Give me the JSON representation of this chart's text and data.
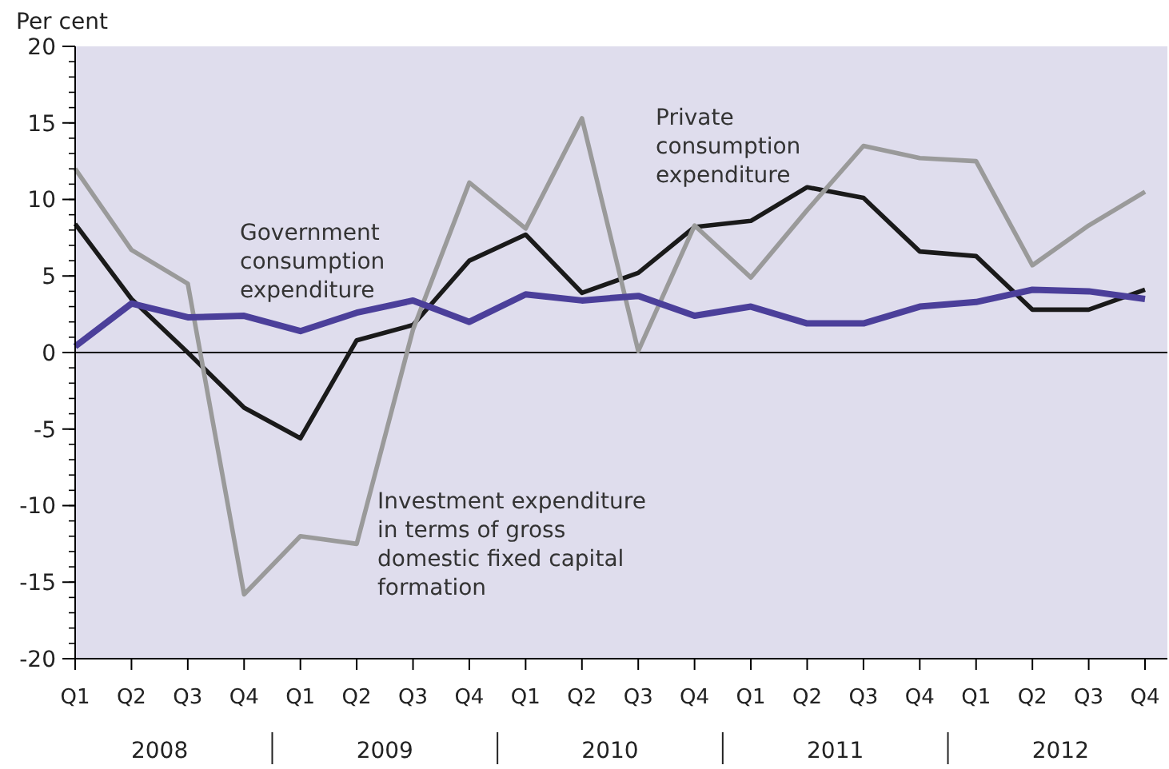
{
  "chart_data": {
    "type": "line",
    "ylabel": "Per cent",
    "categories": [
      "Q1",
      "Q2",
      "Q3",
      "Q4",
      "Q1",
      "Q2",
      "Q3",
      "Q4",
      "Q1",
      "Q2",
      "Q3",
      "Q4",
      "Q1",
      "Q2",
      "Q3",
      "Q4",
      "Q1",
      "Q2",
      "Q3",
      "Q4"
    ],
    "annotations": [
      "2008",
      "2009",
      "2010",
      "2011",
      "2012"
    ],
    "series": [
      {
        "name": "Private consumption expenditure",
        "color": "#1a1a1a",
        "values": [
          8.4,
          3.5,
          0.0,
          -3.6,
          -5.6,
          0.8,
          1.8,
          6.0,
          7.7,
          3.9,
          5.2,
          8.2,
          8.6,
          10.8,
          10.1,
          6.6,
          6.3,
          2.8,
          2.8,
          4.1
        ]
      },
      {
        "name": "Investment expenditure in terms of gross domestic fixed capital formation",
        "color": "#9a9a9a",
        "values": [
          12.0,
          6.7,
          4.5,
          -15.8,
          -12.0,
          -12.5,
          1.5,
          11.1,
          8.1,
          15.3,
          0.1,
          8.3,
          4.9,
          9.3,
          13.5,
          12.7,
          12.5,
          5.7,
          8.3,
          10.5
        ]
      },
      {
        "name": "Government consumption expenditure",
        "color": "#4b3f9a",
        "values": [
          0.4,
          3.2,
          2.3,
          2.4,
          1.4,
          2.6,
          3.4,
          2.0,
          3.8,
          3.4,
          3.7,
          2.4,
          3.0,
          1.9,
          1.9,
          3.0,
          3.3,
          4.1,
          4.0,
          3.5
        ]
      }
    ],
    "ylim": [
      -20,
      20
    ],
    "yticks": [
      -20,
      -15,
      -10,
      -5,
      0,
      5,
      10,
      15,
      20
    ],
    "ref_lines": [
      {
        "axis": "y",
        "value": 0,
        "color": "#000000"
      }
    ],
    "grid": false,
    "line_style": "solid"
  }
}
